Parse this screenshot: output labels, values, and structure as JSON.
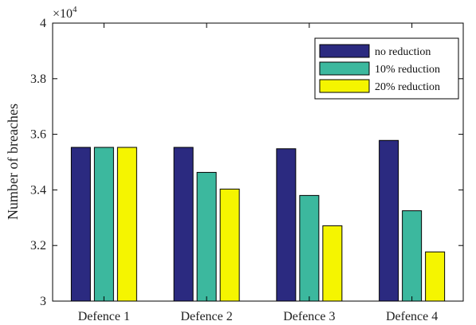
{
  "chart_data": {
    "type": "bar",
    "categories": [
      "Defence 1",
      "Defence 2",
      "Defence 3",
      "Defence 4"
    ],
    "series": [
      {
        "name": "no reduction",
        "color": "#2b2a80",
        "values": [
          35530,
          35530,
          35480,
          35780
        ]
      },
      {
        "name": "10% reduction",
        "color": "#3cb89e",
        "values": [
          35530,
          34630,
          33800,
          33250
        ]
      },
      {
        "name": "20% reduction",
        "color": "#f5f500",
        "values": [
          35530,
          34030,
          32710,
          31770
        ]
      }
    ],
    "ylabel": "Number of breaches",
    "y_exponent": "×10",
    "y_exponent_power": "4",
    "ylim": [
      30000,
      40000
    ],
    "yticks": [
      30000,
      32000,
      34000,
      36000,
      38000,
      40000
    ],
    "ytick_labels": [
      "3",
      "3.2",
      "3.4",
      "3.6",
      "3.8",
      "4"
    ],
    "grid": false,
    "legend_position": "top-right"
  }
}
